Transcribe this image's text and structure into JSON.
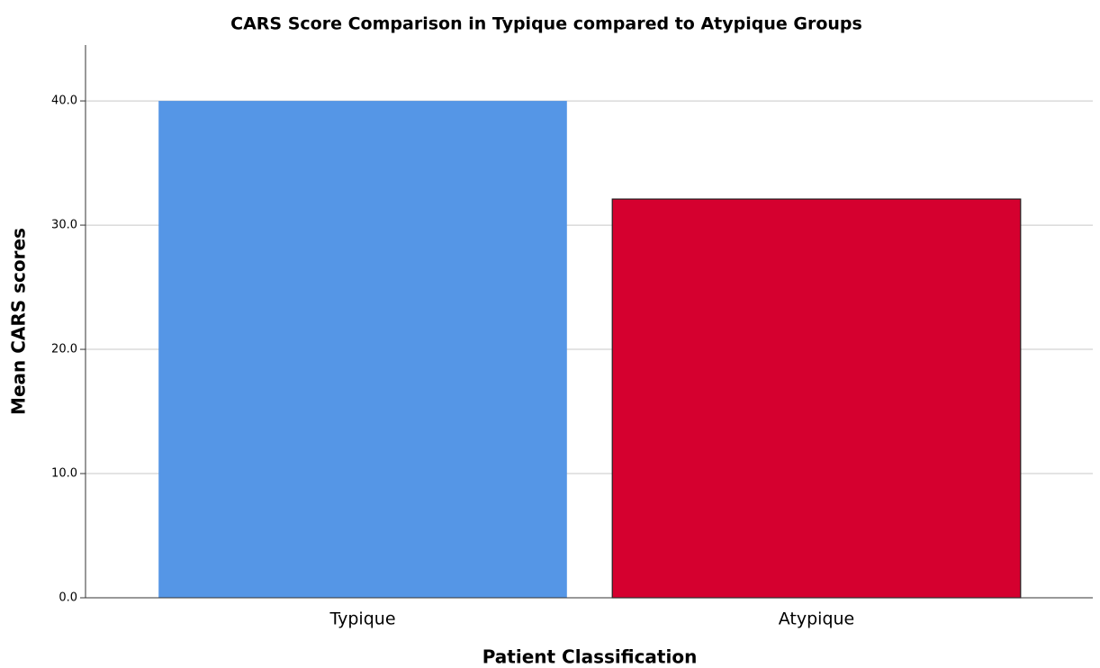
{
  "chart_data": {
    "type": "bar",
    "title": "CARS Score Comparison in Typique compared to Atypique Groups",
    "x_label": "Patient Classification",
    "y_label": "Mean CARS scores",
    "categories": [
      "Typique",
      "Atypique"
    ],
    "values": [
      40.0,
      32.1
    ],
    "colors": [
      "#5596e6",
      "#d5002f"
    ],
    "ylim": [
      0,
      44.5
    ],
    "yticks": [
      {
        "value": 0,
        "label": "0.0"
      },
      {
        "value": 10,
        "label": "10.0"
      },
      {
        "value": 20,
        "label": "20.0"
      },
      {
        "value": 30,
        "label": "30.0"
      },
      {
        "value": 40,
        "label": "40.0"
      }
    ],
    "grid": true
  }
}
